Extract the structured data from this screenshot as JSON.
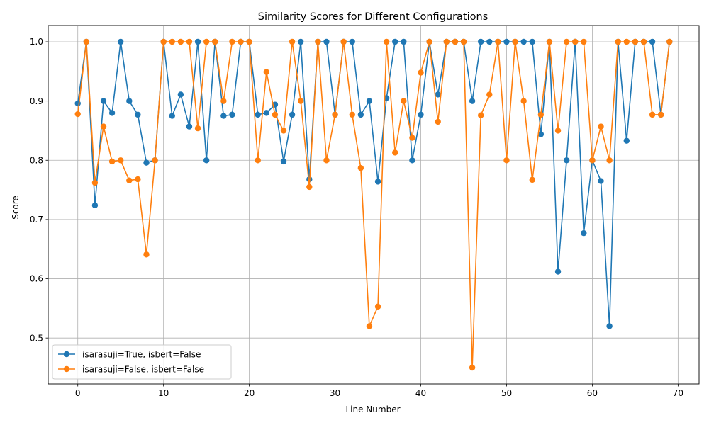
{
  "chart_data": {
    "type": "line",
    "title": "Similarity Scores for Different Configurations",
    "xlabel": "Line Number",
    "ylabel": "Score",
    "xlim": [
      -3.45,
      72.45
    ],
    "ylim": [
      0.4225,
      1.0275
    ],
    "xticks": [
      0,
      10,
      20,
      30,
      40,
      50,
      60,
      70
    ],
    "yticks": [
      0.5,
      0.6,
      0.7,
      0.8,
      0.9,
      1.0
    ],
    "ytick_labels": [
      "0.5",
      "0.6",
      "0.7",
      "0.8",
      "0.9",
      "1.0"
    ],
    "grid": true,
    "legend_position": "lower-left",
    "series": [
      {
        "name": "isarasuji=True, isbert=False",
        "color": "#1f77b4",
        "values": [
          0.896,
          1.0,
          0.724,
          0.9,
          0.88,
          1.0,
          0.9,
          0.877,
          0.796,
          0.8,
          1.0,
          0.875,
          0.911,
          0.857,
          1.0,
          0.8,
          1.0,
          0.875,
          0.877,
          1.0,
          1.0,
          0.877,
          0.88,
          0.894,
          0.798,
          0.877,
          1.0,
          0.768,
          1.0,
          1.0,
          0.877,
          1.0,
          1.0,
          0.877,
          0.9,
          0.764,
          0.905,
          1.0,
          1.0,
          0.8,
          0.877,
          1.0,
          0.911,
          1.0,
          1.0,
          1.0,
          0.9,
          1.0,
          1.0,
          1.0,
          1.0,
          1.0,
          1.0,
          1.0,
          0.844,
          1.0,
          0.612,
          0.8,
          1.0,
          0.677,
          0.8,
          0.765,
          0.52,
          1.0,
          0.833,
          1.0,
          1.0,
          1.0,
          0.877,
          1.0
        ]
      },
      {
        "name": "isarasuji=False, isbert=False",
        "color": "#ff7f0e",
        "values": [
          0.878,
          1.0,
          0.762,
          0.857,
          0.798,
          0.8,
          0.766,
          0.768,
          0.641,
          0.8,
          1.0,
          1.0,
          1.0,
          1.0,
          0.854,
          1.0,
          1.0,
          0.9,
          1.0,
          1.0,
          1.0,
          0.8,
          0.949,
          0.877,
          0.85,
          1.0,
          0.9,
          0.755,
          1.0,
          0.8,
          0.877,
          1.0,
          0.877,
          0.787,
          0.52,
          0.553,
          1.0,
          0.813,
          0.9,
          0.838,
          0.948,
          1.0,
          0.865,
          1.0,
          1.0,
          1.0,
          0.45,
          0.876,
          0.911,
          1.0,
          0.8,
          1.0,
          0.9,
          0.767,
          0.877,
          1.0,
          0.85,
          1.0,
          1.0,
          1.0,
          0.8,
          0.857,
          0.8,
          1.0,
          1.0,
          1.0,
          1.0,
          0.877,
          0.877,
          1.0
        ]
      }
    ]
  }
}
